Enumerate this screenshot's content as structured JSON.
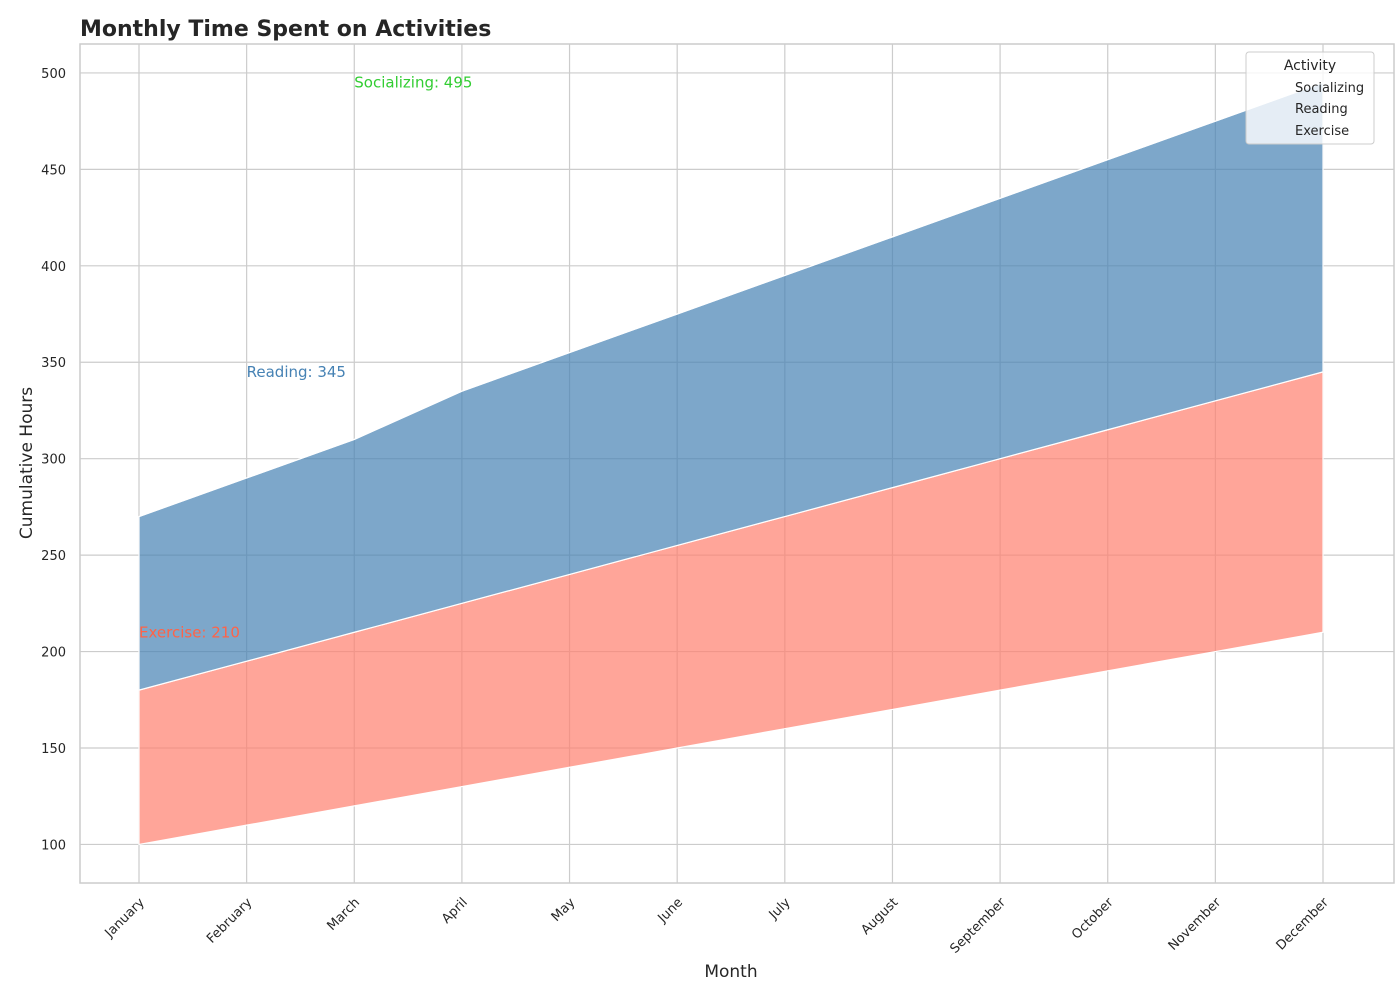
{
  "chart_data": {
    "type": "area",
    "stacked": true,
    "title": "Monthly Time Spent on Activities",
    "xlabel": "Month",
    "ylabel": "Cumulative Hours",
    "categories": [
      "January",
      "February",
      "March",
      "April",
      "May",
      "June",
      "July",
      "August",
      "September",
      "October",
      "November",
      "December"
    ],
    "ylim": [
      80,
      515
    ],
    "yticks": [
      100,
      150,
      200,
      250,
      300,
      350,
      400,
      450,
      500
    ],
    "grid": true,
    "legend": {
      "title": "Activity",
      "placement": "top-right",
      "entries": [
        "Socializing",
        "Reading",
        "Exercise"
      ]
    },
    "series": [
      {
        "name": "Exercise",
        "color": "#ff7f6e",
        "lower": [
          100,
          110,
          120,
          130,
          140,
          150,
          160,
          170,
          180,
          190,
          200,
          210
        ],
        "upper": [
          180,
          195,
          210,
          225,
          240,
          255,
          270,
          285,
          300,
          315,
          330,
          345
        ]
      },
      {
        "name": "Reading",
        "color": "#4682b4",
        "lower": [
          180,
          195,
          210,
          225,
          240,
          255,
          270,
          285,
          300,
          315,
          330,
          345
        ],
        "upper": [
          270,
          290,
          310,
          335,
          355,
          375,
          395,
          415,
          435,
          455,
          475,
          495
        ]
      },
      {
        "name": "Socializing",
        "color": "#32cd32",
        "lower": [
          270,
          290,
          310,
          335,
          355,
          375,
          395,
          415,
          435,
          455,
          475,
          495
        ],
        "upper": [
          270,
          290,
          310,
          335,
          355,
          375,
          395,
          415,
          435,
          455,
          475,
          495
        ]
      }
    ],
    "annotations": [
      {
        "text": "Exercise: 210",
        "x": "January",
        "y": 210,
        "color": "#ff6347"
      },
      {
        "text": "Reading: 345",
        "x": "February",
        "y": 345,
        "color": "#4682b4"
      },
      {
        "text": "Socializing: 495",
        "x": "March",
        "y": 495,
        "color": "#32cd32"
      }
    ]
  }
}
